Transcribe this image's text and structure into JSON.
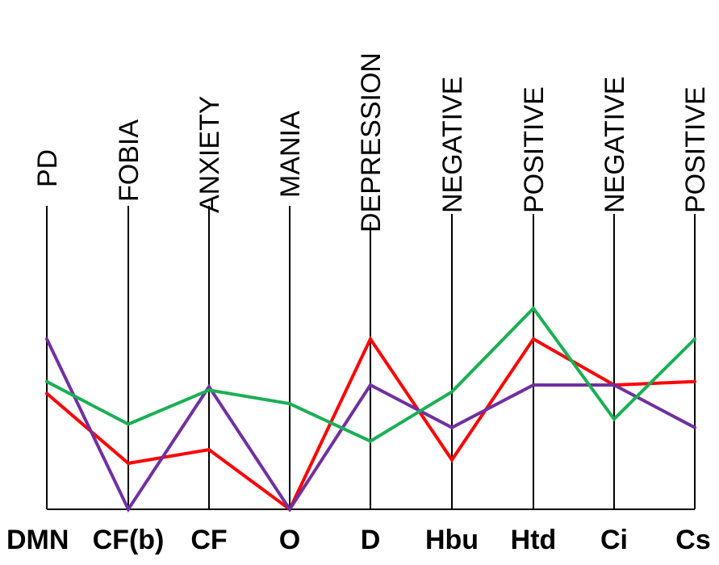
{
  "chart_data": {
    "type": "line",
    "title": "",
    "xlabel": "",
    "ylabel": "",
    "ylim": [
      0,
      100
    ],
    "grid": false,
    "legend": "none",
    "categories": [
      "DMN",
      "CF(b)",
      "CF",
      "O",
      "D",
      "Hbu",
      "Htd",
      "Ci",
      "Cs"
    ],
    "top_labels": [
      "PD",
      "FOBIA",
      "ANXIETY",
      "MANIA",
      "DEPRESSION",
      "NEGATIVE",
      "POSITIVE",
      "NEGATIVE",
      "POSITIVE"
    ],
    "series": [
      {
        "color": "#ff0000",
        "values": [
          68,
          27,
          35,
          0,
          100,
          29,
          100,
          73,
          75
        ]
      },
      {
        "color": "#7030a0",
        "values": [
          100,
          0,
          72,
          0,
          73,
          48,
          73,
          73,
          48
        ]
      },
      {
        "color": "#1aaf54",
        "values": [
          75,
          50,
          70,
          62,
          40,
          69,
          118,
          53,
          100
        ]
      }
    ]
  }
}
